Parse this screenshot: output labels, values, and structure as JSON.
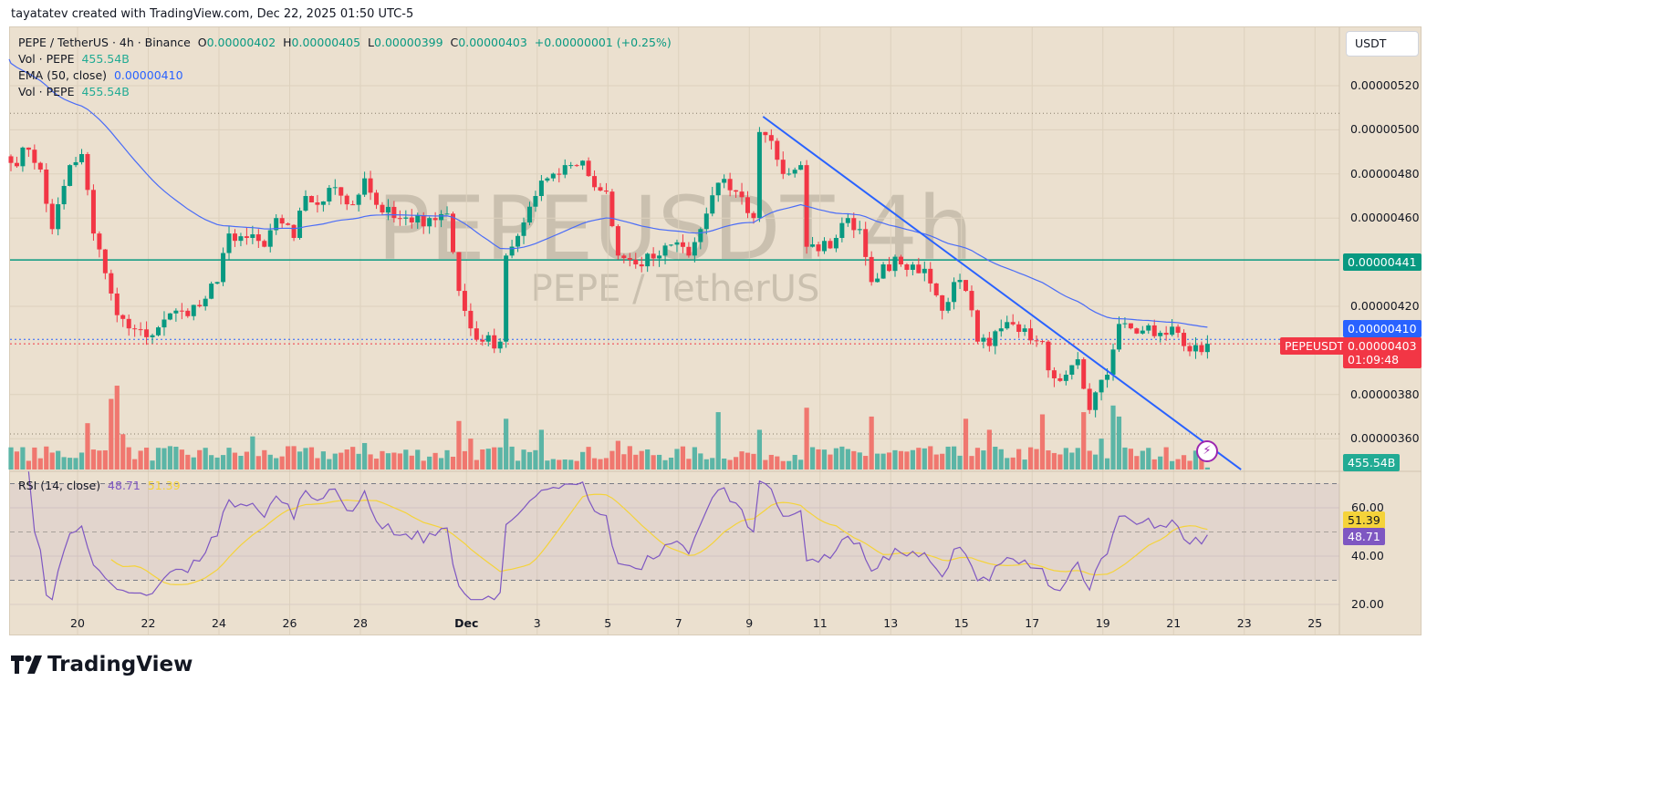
{
  "credit": "tayatatev created with TradingView.com, Dec 22, 2025 01:50 UTC-5",
  "legend": {
    "symbol": "PEPE / TetherUS · 4h · Binance",
    "o_label": "O",
    "o": "0.00000402",
    "h_label": "H",
    "h": "0.00000405",
    "l_label": "L",
    "l": "0.00000399",
    "c_label": "C",
    "c": "0.00000403",
    "change": "+0.00000001 (+0.25%)",
    "vol_label": "Vol · PEPE",
    "vol": "455.54B",
    "ema_label": "EMA (50, close)",
    "ema": "0.00000410",
    "vol2_label": "Vol · PEPE",
    "vol2": "455.54B",
    "rsi_label": "RSI (14, close)",
    "rsi": "48.71",
    "rsi_ma": "51.39"
  },
  "watermark": {
    "main": "PEPEUSDT 4h",
    "sub": "PEPE / TetherUS"
  },
  "currency_button": "USDT",
  "tags": {
    "hline": "0.00000441",
    "ema": "0.00000410",
    "symbol": "PEPEUSDT",
    "price": "0.00000403",
    "countdown": "01:09:48",
    "volume": "455.54B",
    "rsi_ma": "51.39",
    "rsi": "48.71"
  },
  "colors": {
    "up": "#089981",
    "down": "#f23645",
    "vol_up": "#5bb5a6",
    "vol_down": "#f0776f",
    "ema": "#4a6cf7",
    "trend": "#2962ff",
    "rsi": "#7e57c2",
    "rsi_ma": "#f5d33a",
    "bg": "#ebe0cf"
  },
  "chart_data": {
    "type": "candlestick",
    "title": "PEPE / TetherUS · 4h · Binance",
    "price_unit": "1e-8 USDT",
    "y_ticks": [
      "0.00000520",
      "0.00000500",
      "0.00000480",
      "0.00000460",
      "0.00000420",
      "0.00000380",
      "0.00000360"
    ],
    "y_tick_values": [
      520,
      500,
      480,
      460,
      420,
      380,
      360
    ],
    "rsi_ticks": [
      "60.00",
      "40.00",
      "20.00"
    ],
    "rsi_tick_values": [
      60,
      40,
      20
    ],
    "x_ticks": [
      {
        "label": "20",
        "day": 0
      },
      {
        "label": "22",
        "day": 2
      },
      {
        "label": "24",
        "day": 4
      },
      {
        "label": "26",
        "day": 6
      },
      {
        "label": "28",
        "day": 8
      },
      {
        "label": "Dec",
        "day": 11
      },
      {
        "label": "3",
        "day": 13
      },
      {
        "label": "5",
        "day": 15
      },
      {
        "label": "7",
        "day": 17
      },
      {
        "label": "9",
        "day": 19
      },
      {
        "label": "11",
        "day": 21
      },
      {
        "label": "13",
        "day": 23
      },
      {
        "label": "15",
        "day": 25
      },
      {
        "label": "17",
        "day": 27
      },
      {
        "label": "19",
        "day": 29
      },
      {
        "label": "21",
        "day": 31
      },
      {
        "label": "23",
        "day": 33
      },
      {
        "label": "25",
        "day": 35
      }
    ],
    "candle_count": 204,
    "close_keypoints": [
      [
        0,
        485
      ],
      [
        3,
        491
      ],
      [
        5,
        482
      ],
      [
        7,
        455
      ],
      [
        10,
        484
      ],
      [
        12,
        489
      ],
      [
        14,
        453
      ],
      [
        16,
        435
      ],
      [
        18,
        416
      ],
      [
        20,
        410
      ],
      [
        23,
        406
      ],
      [
        26,
        414
      ],
      [
        29,
        418
      ],
      [
        32,
        420
      ],
      [
        35,
        431
      ],
      [
        37,
        453
      ],
      [
        40,
        451
      ],
      [
        43,
        447
      ],
      [
        45,
        460
      ],
      [
        48,
        451
      ],
      [
        50,
        470
      ],
      [
        52,
        466
      ],
      [
        55,
        474
      ],
      [
        58,
        466
      ],
      [
        60,
        478
      ],
      [
        62,
        466
      ],
      [
        65,
        460
      ],
      [
        68,
        458
      ],
      [
        71,
        460
      ],
      [
        74,
        462
      ],
      [
        76,
        427
      ],
      [
        78,
        410
      ],
      [
        80,
        404
      ],
      [
        83,
        404
      ],
      [
        84,
        443
      ],
      [
        87,
        458
      ],
      [
        89,
        470
      ],
      [
        91,
        478
      ],
      [
        94,
        484
      ],
      [
        97,
        486
      ],
      [
        99,
        474
      ],
      [
        101,
        472
      ],
      [
        103,
        443
      ],
      [
        106,
        439
      ],
      [
        110,
        443
      ],
      [
        113,
        449
      ],
      [
        115,
        443
      ],
      [
        117,
        455
      ],
      [
        120,
        476
      ],
      [
        123,
        472
      ],
      [
        126,
        460
      ],
      [
        127,
        499
      ],
      [
        129,
        495
      ],
      [
        131,
        480
      ],
      [
        134,
        484
      ],
      [
        135,
        447
      ],
      [
        137,
        445
      ],
      [
        140,
        451
      ],
      [
        142,
        460
      ],
      [
        144,
        455
      ],
      [
        146,
        431
      ],
      [
        148,
        439
      ],
      [
        151,
        439
      ],
      [
        155,
        437
      ],
      [
        158,
        418
      ],
      [
        160,
        431
      ],
      [
        162,
        427
      ],
      [
        164,
        404
      ],
      [
        166,
        402
      ],
      [
        168,
        410
      ],
      [
        172,
        410
      ],
      [
        175,
        404
      ],
      [
        176,
        391
      ],
      [
        179,
        389
      ],
      [
        181,
        396
      ],
      [
        183,
        373
      ],
      [
        184,
        381
      ],
      [
        186,
        389
      ],
      [
        188,
        412
      ],
      [
        190,
        410
      ],
      [
        192,
        409
      ],
      [
        195,
        408
      ],
      [
        198,
        408
      ],
      [
        199,
        402
      ],
      [
        203,
        403
      ]
    ],
    "volume_unit": "B",
    "volume_spikes": [
      [
        13,
        10500
      ],
      [
        17,
        16000
      ],
      [
        18,
        19000
      ],
      [
        19,
        8000
      ],
      [
        41,
        7500
      ],
      [
        60,
        6000
      ],
      [
        76,
        11000
      ],
      [
        78,
        7000
      ],
      [
        84,
        11500
      ],
      [
        90,
        9000
      ],
      [
        103,
        6500
      ],
      [
        120,
        13000
      ],
      [
        127,
        9000
      ],
      [
        135,
        14000
      ],
      [
        146,
        12000
      ],
      [
        162,
        11500
      ],
      [
        166,
        9000
      ],
      [
        175,
        12500
      ],
      [
        182,
        13000
      ],
      [
        185,
        7000
      ],
      [
        187,
        14500
      ],
      [
        188,
        12000
      ]
    ],
    "volume_base": 3800,
    "last_volume": 455.54,
    "ema_period": 50,
    "ema_seed": 532,
    "hline": 441,
    "high_dotted_line": 507.5,
    "trendline": [
      [
        127.6,
        506
      ],
      [
        208.7,
        346
      ]
    ],
    "rsi_period": 14,
    "rsi_bands": [
      70,
      50,
      30
    ],
    "rsi_last": 48.71,
    "rsi_ma_last": 51.39
  }
}
